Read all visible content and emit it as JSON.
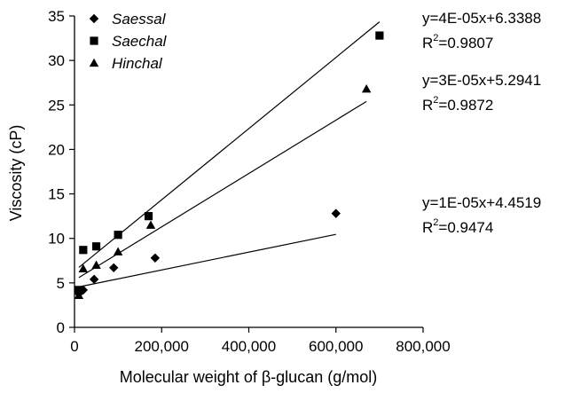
{
  "chart_data": {
    "type": "scatter",
    "xlabel": "Molecular weight of β-glucan (g/mol)",
    "ylabel": "Viscosity (cP)",
    "xlim": [
      0,
      800000
    ],
    "ylim": [
      0,
      35
    ],
    "x_ticks": [
      0,
      200000,
      400000,
      600000,
      800000
    ],
    "x_tick_labels": [
      "0",
      "200,000",
      "400,000",
      "600,000",
      "800,000"
    ],
    "y_ticks": [
      0,
      5,
      10,
      15,
      20,
      25,
      30,
      35
    ],
    "y_tick_labels": [
      "0",
      "5",
      "10",
      "15",
      "20",
      "25",
      "30",
      "35"
    ],
    "grid": false,
    "legend": "top-left",
    "series": [
      {
        "name": "Saessal",
        "marker": "diamond",
        "points": [
          [
            10000,
            3.8
          ],
          [
            20000,
            4.2
          ],
          [
            45000,
            5.4
          ],
          [
            90000,
            6.7
          ],
          [
            185000,
            7.8
          ],
          [
            600000,
            12.8
          ]
        ],
        "trendline": {
          "slope": 1e-05,
          "intercept": 4.4519
        },
        "equation": "y=1E-05x+4.4519",
        "r2_label": "R",
        "r2_sup": "2",
        "r2_value": "=0.9474"
      },
      {
        "name": "Saechal",
        "marker": "square",
        "points": [
          [
            10000,
            4.2
          ],
          [
            20000,
            8.7
          ],
          [
            50000,
            9.1
          ],
          [
            100000,
            10.4
          ],
          [
            170000,
            12.5
          ],
          [
            700000,
            32.8
          ]
        ],
        "trendline": {
          "slope": 4e-05,
          "intercept": 6.3388
        },
        "equation": "y=4E-05x+6.3388",
        "r2_label": "R",
        "r2_sup": "2",
        "r2_value": "=0.9807"
      },
      {
        "name": "Hinchal",
        "marker": "triangle",
        "points": [
          [
            10000,
            3.6
          ],
          [
            20000,
            6.6
          ],
          [
            50000,
            7.0
          ],
          [
            100000,
            8.5
          ],
          [
            175000,
            11.5
          ],
          [
            670000,
            26.8
          ]
        ],
        "trendline": {
          "slope": 3e-05,
          "intercept": 5.2941
        },
        "equation": "y=3E-05x+5.2941",
        "r2_label": "R",
        "r2_sup": "2",
        "r2_value": "=0.9872"
      }
    ]
  }
}
